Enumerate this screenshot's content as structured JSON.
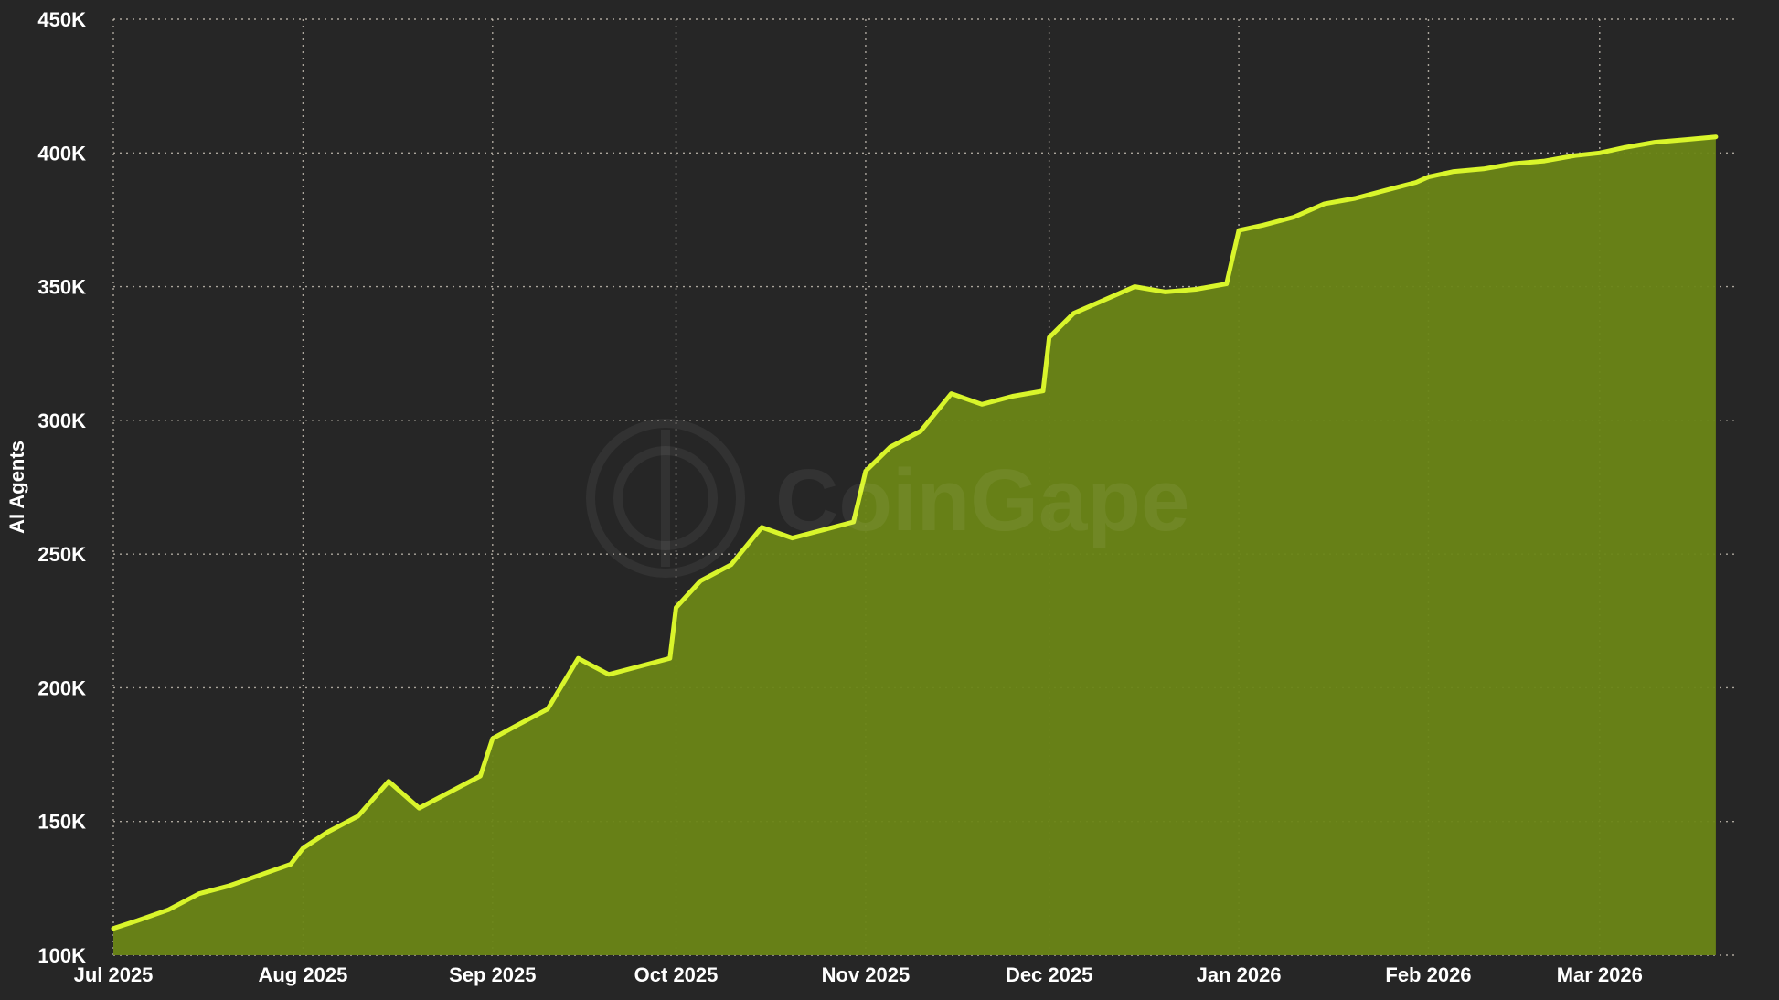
{
  "watermark": {
    "text": "CoinGape",
    "icon": "coin-g-logo-icon"
  },
  "colors": {
    "background": "#262626",
    "line": "#d9f52b",
    "area": "#6a8516",
    "grid": "#d8d0c4",
    "text": "#ffffff"
  },
  "chart_data": {
    "type": "area",
    "title": "",
    "xlabel": "",
    "ylabel": "AI Agents",
    "grid": true,
    "legend": "none",
    "ylim": [
      100000,
      450000
    ],
    "xlim": [
      "2025-07-01",
      "2026-03-23"
    ],
    "y_ticks": [
      100000,
      150000,
      200000,
      250000,
      300000,
      350000,
      400000,
      450000
    ],
    "y_tick_labels": [
      "100K",
      "150K",
      "200K",
      "250K",
      "300K",
      "350K",
      "400K",
      "450K"
    ],
    "x_ticks": [
      "2025-07-01",
      "2025-08-01",
      "2025-09-01",
      "2025-10-01",
      "2025-11-01",
      "2025-12-01",
      "2026-01-01",
      "2026-02-01",
      "2026-03-01"
    ],
    "x_tick_labels": [
      "Jul 2025",
      "Aug 2025",
      "Sep 2025",
      "Oct 2025",
      "Nov 2025",
      "Dec 2025",
      "Jan 2026",
      "Feb 2026",
      "Mar 2026"
    ],
    "series": [
      {
        "points": [
          [
            "2025-07-01",
            110000
          ],
          [
            "2025-07-05",
            113000
          ],
          [
            "2025-07-10",
            117000
          ],
          [
            "2025-07-15",
            123000
          ],
          [
            "2025-07-20",
            126000
          ],
          [
            "2025-07-25",
            130000
          ],
          [
            "2025-07-30",
            134000
          ],
          [
            "2025-08-01",
            140000
          ],
          [
            "2025-08-05",
            146000
          ],
          [
            "2025-08-10",
            152000
          ],
          [
            "2025-08-15",
            165000
          ],
          [
            "2025-08-20",
            155000
          ],
          [
            "2025-08-25",
            161000
          ],
          [
            "2025-08-30",
            167000
          ],
          [
            "2025-09-01",
            181000
          ],
          [
            "2025-09-05",
            186000
          ],
          [
            "2025-09-10",
            192000
          ],
          [
            "2025-09-15",
            211000
          ],
          [
            "2025-09-20",
            205000
          ],
          [
            "2025-09-25",
            208000
          ],
          [
            "2025-09-30",
            211000
          ],
          [
            "2025-10-01",
            230000
          ],
          [
            "2025-10-05",
            240000
          ],
          [
            "2025-10-10",
            246000
          ],
          [
            "2025-10-15",
            260000
          ],
          [
            "2025-10-20",
            256000
          ],
          [
            "2025-10-25",
            259000
          ],
          [
            "2025-10-30",
            262000
          ],
          [
            "2025-11-01",
            281000
          ],
          [
            "2025-11-05",
            290000
          ],
          [
            "2025-11-10",
            296000
          ],
          [
            "2025-11-15",
            310000
          ],
          [
            "2025-11-20",
            306000
          ],
          [
            "2025-11-25",
            309000
          ],
          [
            "2025-11-30",
            311000
          ],
          [
            "2025-12-01",
            331000
          ],
          [
            "2025-12-05",
            340000
          ],
          [
            "2025-12-10",
            345000
          ],
          [
            "2025-12-15",
            350000
          ],
          [
            "2025-12-20",
            348000
          ],
          [
            "2025-12-25",
            349000
          ],
          [
            "2025-12-30",
            351000
          ],
          [
            "2026-01-01",
            371000
          ],
          [
            "2026-01-05",
            373000
          ],
          [
            "2026-01-10",
            376000
          ],
          [
            "2026-01-15",
            381000
          ],
          [
            "2026-01-20",
            383000
          ],
          [
            "2026-01-25",
            386000
          ],
          [
            "2026-01-30",
            389000
          ],
          [
            "2026-02-01",
            391000
          ],
          [
            "2026-02-05",
            393000
          ],
          [
            "2026-02-10",
            394000
          ],
          [
            "2026-02-15",
            396000
          ],
          [
            "2026-02-20",
            397000
          ],
          [
            "2026-02-25",
            399000
          ],
          [
            "2026-03-01",
            400000
          ],
          [
            "2026-03-05",
            402000
          ],
          [
            "2026-03-10",
            404000
          ],
          [
            "2026-03-15",
            405000
          ],
          [
            "2026-03-20",
            406000
          ]
        ]
      }
    ]
  }
}
